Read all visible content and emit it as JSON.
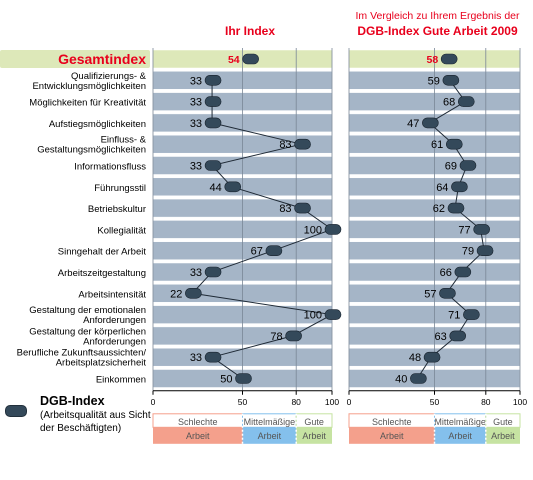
{
  "header": {
    "left_title": "Ihr Index",
    "right_line1": "Im Vergleich zu Ihrem Ergebnis der",
    "right_line2": "DGB-Index Gute Arbeit 2009"
  },
  "legend": {
    "title": "DGB-Index",
    "description_line1": "(Arbeitsqualität aus Sicht",
    "description_line2": "der Beschäftigten)"
  },
  "colors": {
    "row_fill": "#a5b5c7",
    "highlight_fill": "#dde8b9",
    "marker": "#34495a",
    "accent_red": "#e8001c",
    "band_bad": "#f4a08c",
    "band_mid": "#84c0ec",
    "band_good": "#c6e3a2"
  },
  "chart_data": [
    {
      "type": "line",
      "title": "Ihr Index",
      "xlim": [
        0,
        100
      ],
      "ticks": [
        0,
        50,
        80,
        100
      ],
      "categories": [
        "Gesamtindex",
        "Qualifizierungs- & Entwicklungsmöglichkeiten",
        "Möglichkeiten für Kreativität",
        "Aufstiegsmöglichkeiten",
        "Einfluss- & Gestaltungsmöglichkeiten",
        "Informationsfluss",
        "Führungsstil",
        "Betriebskultur",
        "Kollegialität",
        "Sinngehalt der Arbeit",
        "Arbeitszeitgestaltung",
        "Arbeitsintensität",
        "Gestaltung der emotionalen Anforderungen",
        "Gestaltung der körperlichen Anforderungen",
        "Berufliche Zukunftsaussichten/ Arbeitsplatzsicherheit",
        "Einkommen"
      ],
      "category_lines": [
        [
          "Gesamtindex"
        ],
        [
          "Qualifizierungs- &",
          "Entwicklungsmöglichkeiten"
        ],
        [
          "Möglichkeiten für Kreativität"
        ],
        [
          "Aufstiegsmöglichkeiten"
        ],
        [
          "Einfluss- &",
          "Gestaltungsmöglichkeiten"
        ],
        [
          "Informationsfluss"
        ],
        [
          "Führungsstil"
        ],
        [
          "Betriebskultur"
        ],
        [
          "Kollegialität"
        ],
        [
          "Sinngehalt der Arbeit"
        ],
        [
          "Arbeitszeitgestaltung"
        ],
        [
          "Arbeitsintensität"
        ],
        [
          "Gestaltung der emotionalen",
          "Anforderungen"
        ],
        [
          "Gestaltung der körperlichen",
          "Anforderungen"
        ],
        [
          "Berufliche Zukunftsaussichten/",
          "Arbeitsplatzsicherheit"
        ],
        [
          "Einkommen"
        ]
      ],
      "values": [
        54,
        33,
        33,
        33,
        83,
        33,
        44,
        83,
        100,
        67,
        33,
        22,
        100,
        78,
        33,
        50
      ],
      "bands": [
        {
          "label_line1": "Schlechte",
          "label_line2": "Arbeit",
          "from": 0,
          "to": 50
        },
        {
          "label_line1": "Mittelmäßige",
          "label_line2": "Arbeit",
          "from": 50,
          "to": 80
        },
        {
          "label_line1": "Gute",
          "label_line2": "Arbeit",
          "from": 80,
          "to": 100
        }
      ]
    },
    {
      "type": "line",
      "title": "DGB-Index Gute Arbeit 2009",
      "xlim": [
        0,
        100
      ],
      "ticks": [
        0,
        50,
        80,
        100
      ],
      "values": [
        58,
        59,
        68,
        47,
        61,
        69,
        64,
        62,
        77,
        79,
        66,
        57,
        71,
        63,
        48,
        40
      ],
      "bands": [
        {
          "label_line1": "Schlechte",
          "label_line2": "Arbeit",
          "from": 0,
          "to": 50
        },
        {
          "label_line1": "Mittelmäßige",
          "label_line2": "Arbeit",
          "from": 50,
          "to": 80
        },
        {
          "label_line1": "Gute",
          "label_line2": "Arbeit",
          "from": 80,
          "to": 100
        }
      ]
    }
  ]
}
